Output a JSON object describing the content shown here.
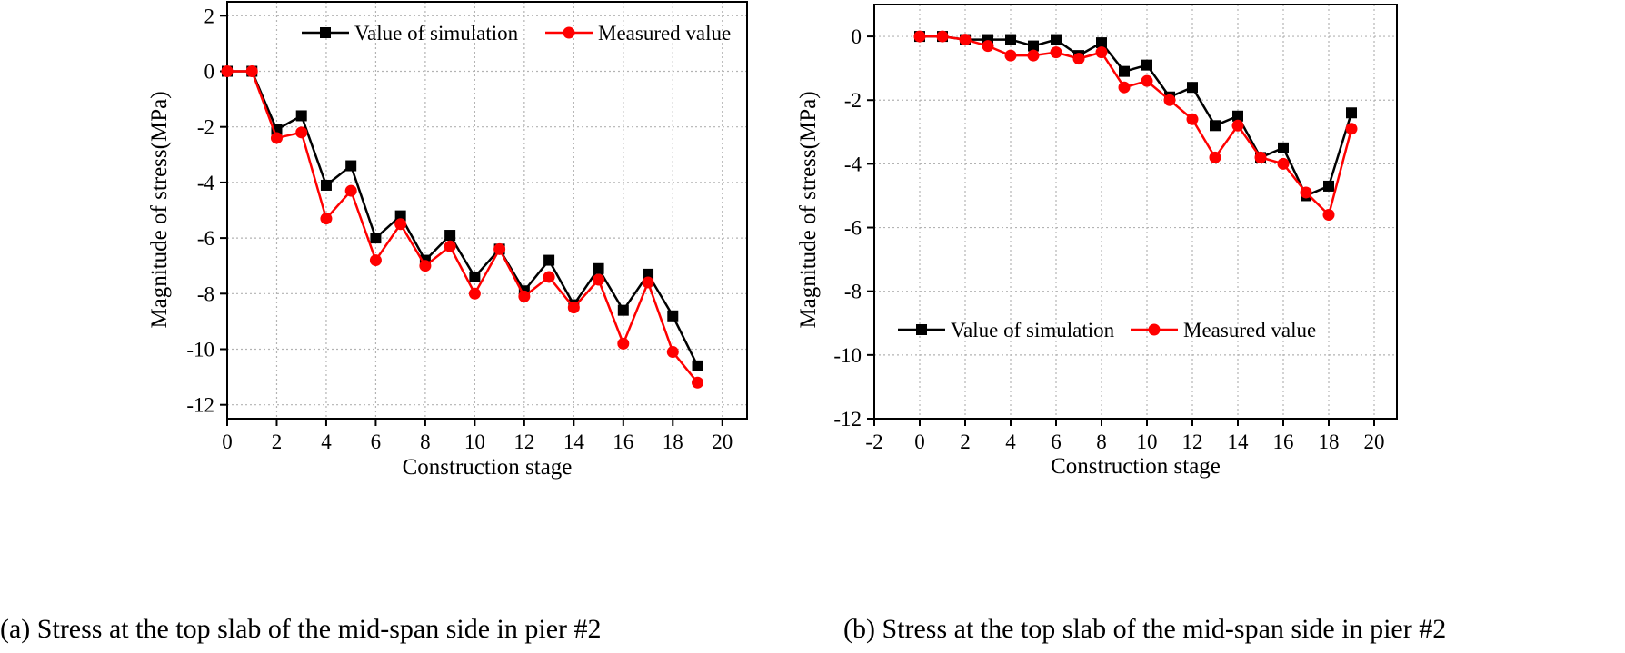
{
  "chart_data": [
    {
      "type": "line",
      "title": "",
      "caption": "(a) Stress at the top slab of the mid-span side in pier #2",
      "xlabel": "Construction stage",
      "ylabel": "Magnitude of stress(MPa)",
      "xlim": [
        0,
        21
      ],
      "ylim": [
        -12.5,
        2.5
      ],
      "xticks": [
        0,
        2,
        4,
        6,
        8,
        10,
        12,
        14,
        16,
        18,
        20
      ],
      "yticks": [
        2,
        0,
        -2,
        -4,
        -6,
        -8,
        -10,
        -12
      ],
      "grid": true,
      "legend_position": "top-right",
      "series": [
        {
          "name": "Value of simulation",
          "color": "#000000",
          "marker": "square",
          "x": [
            0,
            1,
            2,
            3,
            4,
            5,
            6,
            7,
            8,
            9,
            10,
            11,
            12,
            13,
            14,
            15,
            16,
            17,
            18,
            19
          ],
          "y": [
            0,
            0,
            -2.1,
            -1.6,
            -4.1,
            -3.4,
            -6.0,
            -5.2,
            -6.8,
            -5.9,
            -7.4,
            -6.4,
            -7.9,
            -6.8,
            -8.4,
            -7.1,
            -8.6,
            -7.3,
            -8.8,
            -10.6
          ]
        },
        {
          "name": "Measured value",
          "color": "#ff0000",
          "marker": "circle",
          "x": [
            0,
            1,
            2,
            3,
            4,
            5,
            6,
            7,
            8,
            9,
            10,
            11,
            12,
            13,
            14,
            15,
            16,
            17,
            18,
            19
          ],
          "y": [
            0,
            0,
            -2.4,
            -2.2,
            -5.3,
            -4.3,
            -6.8,
            -5.5,
            -7.0,
            -6.3,
            -8.0,
            -6.4,
            -8.1,
            -7.4,
            -8.5,
            -7.5,
            -9.8,
            -7.6,
            -10.1,
            -11.2
          ]
        }
      ]
    },
    {
      "type": "line",
      "title": "",
      "caption": "(b) Stress at the top slab of the mid-span side in pier #2",
      "xlabel": "Construction stage",
      "ylabel": "Magnitude of stress(MPa)",
      "xlim": [
        -2,
        21
      ],
      "ylim": [
        -12,
        1
      ],
      "xticks": [
        -2,
        0,
        2,
        4,
        6,
        8,
        10,
        12,
        14,
        16,
        18,
        20
      ],
      "yticks": [
        0,
        -2,
        -4,
        -6,
        -8,
        -10,
        -12
      ],
      "grid": true,
      "legend_position": "center-left",
      "series": [
        {
          "name": "Value of simulation",
          "color": "#000000",
          "marker": "square",
          "x": [
            0,
            1,
            2,
            3,
            4,
            5,
            6,
            7,
            8,
            9,
            10,
            11,
            12,
            13,
            14,
            15,
            16,
            17,
            18,
            19
          ],
          "y": [
            0,
            0,
            -0.1,
            -0.1,
            -0.1,
            -0.3,
            -0.1,
            -0.6,
            -0.2,
            -1.1,
            -0.9,
            -1.9,
            -1.6,
            -2.8,
            -2.5,
            -3.8,
            -3.5,
            -5.0,
            -4.7,
            -2.4
          ]
        },
        {
          "name": "Measured value",
          "color": "#ff0000",
          "marker": "circle",
          "x": [
            0,
            1,
            2,
            3,
            4,
            5,
            6,
            7,
            8,
            9,
            10,
            11,
            12,
            13,
            14,
            15,
            16,
            17,
            18,
            19
          ],
          "y": [
            0,
            0,
            -0.1,
            -0.3,
            -0.6,
            -0.6,
            -0.5,
            -0.7,
            -0.5,
            -1.6,
            -1.4,
            -2.0,
            -2.6,
            -3.8,
            -2.8,
            -3.8,
            -4.0,
            -4.9,
            -5.6,
            -2.9
          ]
        }
      ]
    }
  ]
}
